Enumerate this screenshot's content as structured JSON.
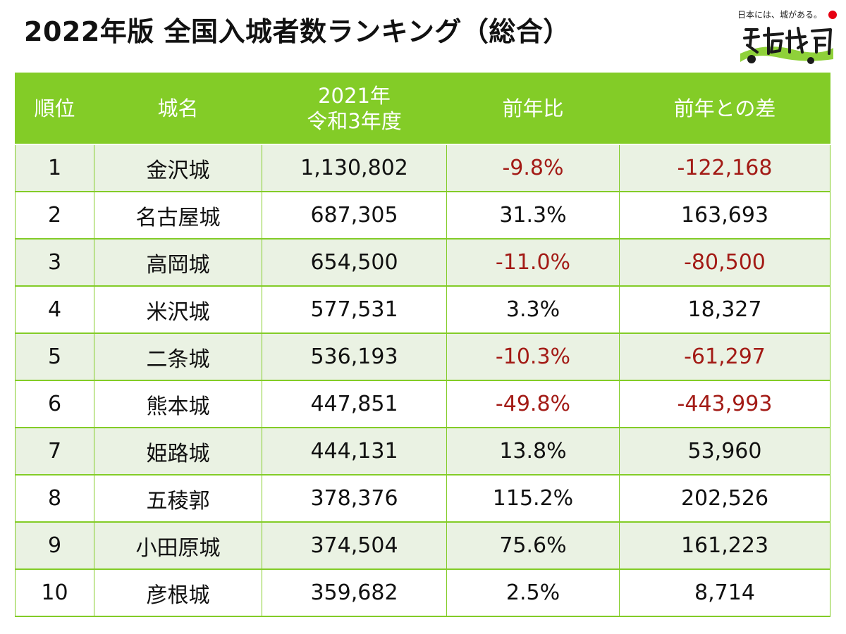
{
  "title": "2022年版 全国入城者数ランキング（総合）",
  "logo": {
    "tagline": "日本には、城がある。",
    "flag_color": "#e60012",
    "icon": "shiro-logo-icon"
  },
  "colors": {
    "header_bg": "#83cc27",
    "row_alt_bg": "#eaf2e3",
    "negative_text": "#a31b16"
  },
  "table": {
    "headers": {
      "rank": "順位",
      "castle": "城名",
      "visitors_line1": "2021年",
      "visitors_line2": "令和3年度",
      "yoy": "前年比",
      "diff": "前年との差"
    },
    "rows": [
      {
        "rank": "1",
        "castle": "金沢城",
        "visitors": "1,130,802",
        "yoy": "-9.8%",
        "diff": "-122,168",
        "negative": true
      },
      {
        "rank": "2",
        "castle": "名古屋城",
        "visitors": "687,305",
        "yoy": "31.3%",
        "diff": "163,693",
        "negative": false
      },
      {
        "rank": "3",
        "castle": "高岡城",
        "visitors": "654,500",
        "yoy": "-11.0%",
        "diff": "-80,500",
        "negative": true
      },
      {
        "rank": "4",
        "castle": "米沢城",
        "visitors": "577,531",
        "yoy": "3.3%",
        "diff": "18,327",
        "negative": false
      },
      {
        "rank": "5",
        "castle": "二条城",
        "visitors": "536,193",
        "yoy": "-10.3%",
        "diff": "-61,297",
        "negative": true
      },
      {
        "rank": "6",
        "castle": "熊本城",
        "visitors": "447,851",
        "yoy": "-49.8%",
        "diff": "-443,993",
        "negative": true
      },
      {
        "rank": "7",
        "castle": "姫路城",
        "visitors": "444,131",
        "yoy": "13.8%",
        "diff": "53,960",
        "negative": false
      },
      {
        "rank": "8",
        "castle": "五稜郭",
        "visitors": "378,376",
        "yoy": "115.2%",
        "diff": "202,526",
        "negative": false
      },
      {
        "rank": "9",
        "castle": "小田原城",
        "visitors": "374,504",
        "yoy": "75.6%",
        "diff": "161,223",
        "negative": false
      },
      {
        "rank": "10",
        "castle": "彦根城",
        "visitors": "359,682",
        "yoy": "2.5%",
        "diff": "8,714",
        "negative": false
      }
    ]
  }
}
